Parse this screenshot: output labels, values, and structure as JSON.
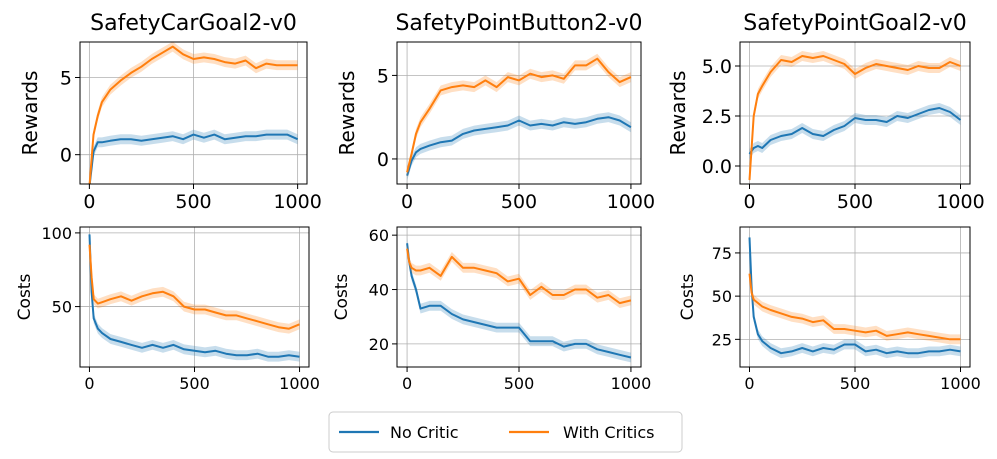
{
  "legend": {
    "items": [
      {
        "label": "No Critic",
        "color": "#1f77b4"
      },
      {
        "label": "With Critics",
        "color": "#ff7f0e"
      }
    ]
  },
  "colors": {
    "no_critic": "#1f77b4",
    "with_critics": "#ff7f0e",
    "grid": "#b0b0b0"
  },
  "chart_data": [
    {
      "id": "car-rewards",
      "type": "line",
      "title": "SafetyCarGoal2-v0",
      "xlabel": "",
      "ylabel": "Rewards",
      "xlim": [
        -45,
        1045
      ],
      "ylim": [
        -1.9,
        7.3
      ],
      "xticks": [
        0,
        500,
        1000
      ],
      "yticks": [
        0,
        5
      ],
      "grid": true,
      "series": [
        {
          "name": "No Critic",
          "x": [
            0,
            20,
            40,
            60,
            100,
            150,
            200,
            250,
            300,
            350,
            400,
            450,
            500,
            550,
            600,
            650,
            700,
            750,
            800,
            850,
            900,
            950,
            1000
          ],
          "values": [
            -2.1,
            0.2,
            0.8,
            0.8,
            0.9,
            1.0,
            1.0,
            0.9,
            1.0,
            1.1,
            1.2,
            1.0,
            1.3,
            1.1,
            1.3,
            1.0,
            1.1,
            1.2,
            1.2,
            1.3,
            1.3,
            1.3,
            1.0
          ]
        },
        {
          "name": "With Critics",
          "x": [
            0,
            20,
            40,
            60,
            100,
            150,
            200,
            250,
            300,
            350,
            400,
            450,
            500,
            550,
            600,
            650,
            700,
            750,
            800,
            850,
            900,
            950,
            1000
          ],
          "values": [
            -2.1,
            1.3,
            2.5,
            3.4,
            4.2,
            4.8,
            5.3,
            5.7,
            6.2,
            6.6,
            7.0,
            6.5,
            6.2,
            6.3,
            6.2,
            6.0,
            5.9,
            6.1,
            5.6,
            5.9,
            5.8,
            5.8,
            5.8
          ]
        }
      ]
    },
    {
      "id": "button-rewards",
      "type": "line",
      "title": "SafetyPointButton2-v0",
      "xlabel": "",
      "ylabel": "Rewards",
      "xlim": [
        -45,
        1045
      ],
      "ylim": [
        -1.5,
        7.0
      ],
      "xticks": [
        0,
        500,
        1000
      ],
      "yticks": [
        0,
        5
      ],
      "grid": true,
      "series": [
        {
          "name": "No Critic",
          "x": [
            0,
            20,
            40,
            60,
            100,
            150,
            200,
            250,
            300,
            350,
            400,
            450,
            500,
            550,
            600,
            650,
            700,
            750,
            800,
            850,
            900,
            950,
            1000
          ],
          "values": [
            -1.0,
            -0.1,
            0.4,
            0.6,
            0.8,
            1.0,
            1.1,
            1.5,
            1.7,
            1.8,
            1.9,
            2.0,
            2.3,
            2.0,
            2.1,
            2.0,
            2.2,
            2.1,
            2.2,
            2.4,
            2.5,
            2.3,
            1.9
          ]
        },
        {
          "name": "With Critics",
          "x": [
            0,
            20,
            40,
            60,
            100,
            150,
            200,
            250,
            300,
            350,
            400,
            450,
            500,
            550,
            600,
            650,
            700,
            750,
            800,
            850,
            900,
            950,
            1000
          ],
          "values": [
            -0.8,
            0.3,
            1.5,
            2.2,
            3.0,
            4.1,
            4.3,
            4.4,
            4.3,
            4.7,
            4.3,
            4.9,
            4.7,
            5.1,
            4.9,
            5.0,
            4.8,
            5.6,
            5.6,
            6.0,
            5.2,
            4.6,
            4.9
          ]
        }
      ]
    },
    {
      "id": "goal-rewards",
      "type": "line",
      "title": "SafetyPointGoal2-v0",
      "xlabel": "",
      "ylabel": "Rewards",
      "xlim": [
        -45,
        1045
      ],
      "ylim": [
        -0.9,
        6.2
      ],
      "xticks": [
        0,
        500,
        1000
      ],
      "yticks": [
        0.0,
        2.5,
        5.0
      ],
      "ytick_labels": [
        "0.0",
        "2.5",
        "5.0"
      ],
      "grid": true,
      "series": [
        {
          "name": "No Critic",
          "x": [
            0,
            20,
            40,
            60,
            100,
            150,
            200,
            250,
            300,
            350,
            400,
            450,
            500,
            550,
            600,
            650,
            700,
            750,
            800,
            850,
            900,
            950,
            1000
          ],
          "values": [
            0.6,
            0.9,
            1.0,
            0.9,
            1.3,
            1.5,
            1.6,
            1.9,
            1.6,
            1.5,
            1.8,
            2.0,
            2.4,
            2.3,
            2.3,
            2.2,
            2.5,
            2.4,
            2.6,
            2.8,
            2.9,
            2.7,
            2.3
          ]
        },
        {
          "name": "With Critics",
          "x": [
            0,
            20,
            40,
            60,
            100,
            150,
            200,
            250,
            300,
            350,
            400,
            450,
            500,
            550,
            600,
            650,
            700,
            750,
            800,
            850,
            900,
            950,
            1000
          ],
          "values": [
            -0.7,
            2.5,
            3.6,
            4.0,
            4.7,
            5.3,
            5.2,
            5.5,
            5.4,
            5.5,
            5.3,
            5.1,
            4.6,
            4.9,
            5.1,
            5.0,
            4.9,
            4.8,
            5.0,
            4.9,
            4.9,
            5.2,
            5.0
          ]
        }
      ]
    },
    {
      "id": "car-costs",
      "type": "line",
      "title": "",
      "xlabel": "",
      "ylabel": "Costs",
      "xlim": [
        -45,
        1045
      ],
      "ylim": [
        9,
        104
      ],
      "xticks": [
        0,
        500,
        1000
      ],
      "yticks": [
        50,
        100
      ],
      "grid": true,
      "series": [
        {
          "name": "No Critic",
          "x": [
            0,
            10,
            20,
            40,
            60,
            100,
            150,
            200,
            250,
            300,
            350,
            400,
            450,
            500,
            550,
            600,
            650,
            700,
            750,
            800,
            850,
            900,
            950,
            1000
          ],
          "values": [
            99,
            60,
            42,
            35,
            32,
            28,
            26,
            24,
            22,
            24,
            22,
            24,
            21,
            20,
            19,
            20,
            18,
            17,
            17,
            18,
            16,
            16,
            17,
            16
          ]
        },
        {
          "name": "With Critics",
          "x": [
            0,
            10,
            20,
            40,
            60,
            100,
            150,
            200,
            250,
            300,
            350,
            400,
            450,
            500,
            550,
            600,
            650,
            700,
            750,
            800,
            850,
            900,
            950,
            1000
          ],
          "values": [
            92,
            70,
            55,
            52,
            53,
            55,
            57,
            54,
            57,
            59,
            60,
            57,
            50,
            48,
            48,
            46,
            44,
            44,
            42,
            40,
            38,
            36,
            35,
            38
          ]
        }
      ]
    },
    {
      "id": "button-costs",
      "type": "line",
      "title": "",
      "xlabel": "",
      "ylabel": "Costs",
      "xlim": [
        -45,
        1045
      ],
      "ylim": [
        11.5,
        63
      ],
      "xticks": [
        0,
        500,
        1000
      ],
      "yticks": [
        20,
        40,
        60
      ],
      "grid": true,
      "series": [
        {
          "name": "No Critic",
          "x": [
            0,
            10,
            20,
            40,
            60,
            100,
            150,
            200,
            250,
            300,
            350,
            400,
            450,
            500,
            550,
            600,
            650,
            700,
            750,
            800,
            850,
            900,
            950,
            1000
          ],
          "values": [
            57,
            50,
            45,
            40,
            33,
            34,
            34,
            31,
            29,
            28,
            27,
            26,
            26,
            26,
            21,
            21,
            21,
            19,
            20,
            20,
            18,
            17,
            16,
            15
          ]
        },
        {
          "name": "With Critics",
          "x": [
            0,
            10,
            20,
            40,
            60,
            100,
            150,
            200,
            250,
            300,
            350,
            400,
            450,
            500,
            550,
            600,
            650,
            700,
            750,
            800,
            850,
            900,
            950,
            1000
          ],
          "values": [
            55,
            50,
            48,
            47,
            47,
            48,
            45,
            52,
            48,
            48,
            47,
            46,
            43,
            44,
            38,
            41,
            38,
            38,
            40,
            40,
            37,
            38,
            35,
            36
          ]
        }
      ]
    },
    {
      "id": "goal-costs",
      "type": "line",
      "title": "",
      "xlabel": "",
      "ylabel": "Costs",
      "xlim": [
        -45,
        1045
      ],
      "ylim": [
        9,
        90
      ],
      "xticks": [
        0,
        500,
        1000
      ],
      "yticks": [
        25,
        50,
        75
      ],
      "grid": true,
      "series": [
        {
          "name": "No Critic",
          "x": [
            0,
            10,
            20,
            40,
            60,
            100,
            150,
            200,
            250,
            300,
            350,
            400,
            450,
            500,
            550,
            600,
            650,
            700,
            750,
            800,
            850,
            900,
            950,
            1000
          ],
          "values": [
            84,
            55,
            38,
            28,
            24,
            20,
            17,
            18,
            20,
            18,
            20,
            19,
            22,
            22,
            18,
            19,
            17,
            18,
            17,
            17,
            18,
            18,
            19,
            18
          ]
        },
        {
          "name": "With Critics",
          "x": [
            0,
            10,
            20,
            40,
            60,
            100,
            150,
            200,
            250,
            300,
            350,
            400,
            450,
            500,
            550,
            600,
            650,
            700,
            750,
            800,
            850,
            900,
            950,
            1000
          ],
          "values": [
            63,
            52,
            48,
            46,
            44,
            42,
            40,
            38,
            37,
            35,
            36,
            31,
            31,
            30,
            29,
            30,
            27,
            28,
            29,
            28,
            27,
            26,
            25,
            25
          ]
        }
      ]
    }
  ]
}
